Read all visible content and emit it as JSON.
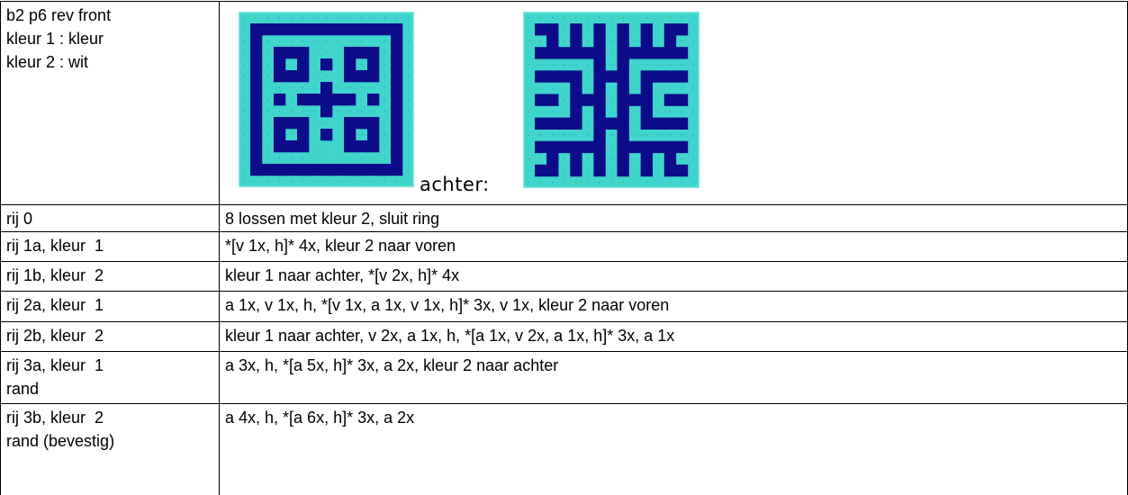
{
  "table": {
    "rows": [
      {
        "label": [
          "b2 p6 rev front",
          "kleur 1 : kleur",
          "kleur 2 : wit"
        ],
        "caption": "achter:"
      },
      {
        "label": [
          "rij 0"
        ],
        "text": "8 lossen met kleur 2, sluit ring"
      },
      {
        "label": [
          "rij 1a, kleur  1"
        ],
        "text": "*[v 1x, h]* 4x, kleur 2 naar voren"
      },
      {
        "label": [
          "rij 1b, kleur  2"
        ],
        "text": "kleur 1 naar achter, *[v 2x, h]* 4x"
      },
      {
        "label": [
          "rij 2a, kleur  1"
        ],
        "text": "a 1x, v 1x, h, *[v 1x, a 1x, v 1x, h]* 3x, v 1x, kleur 2 naar voren"
      },
      {
        "label": [
          "rij 2b, kleur  2"
        ],
        "text": "kleur 1 naar achter, v 2x, a 1x, h, *[a 1x, v 2x, a 1x, h]* 3x, a 1x"
      },
      {
        "label": [
          "rij 3a, kleur  1",
          "rand"
        ],
        "text": "a 3x, h, *[a 5x, h]* 3x, a 2x, kleur 2 naar achter"
      },
      {
        "label": [
          "rij 3b, kleur  2",
          "rand (bevestig)"
        ],
        "text": "a 4x, h, *[a 6x, h]* 3x, a 2x"
      }
    ]
  }
}
